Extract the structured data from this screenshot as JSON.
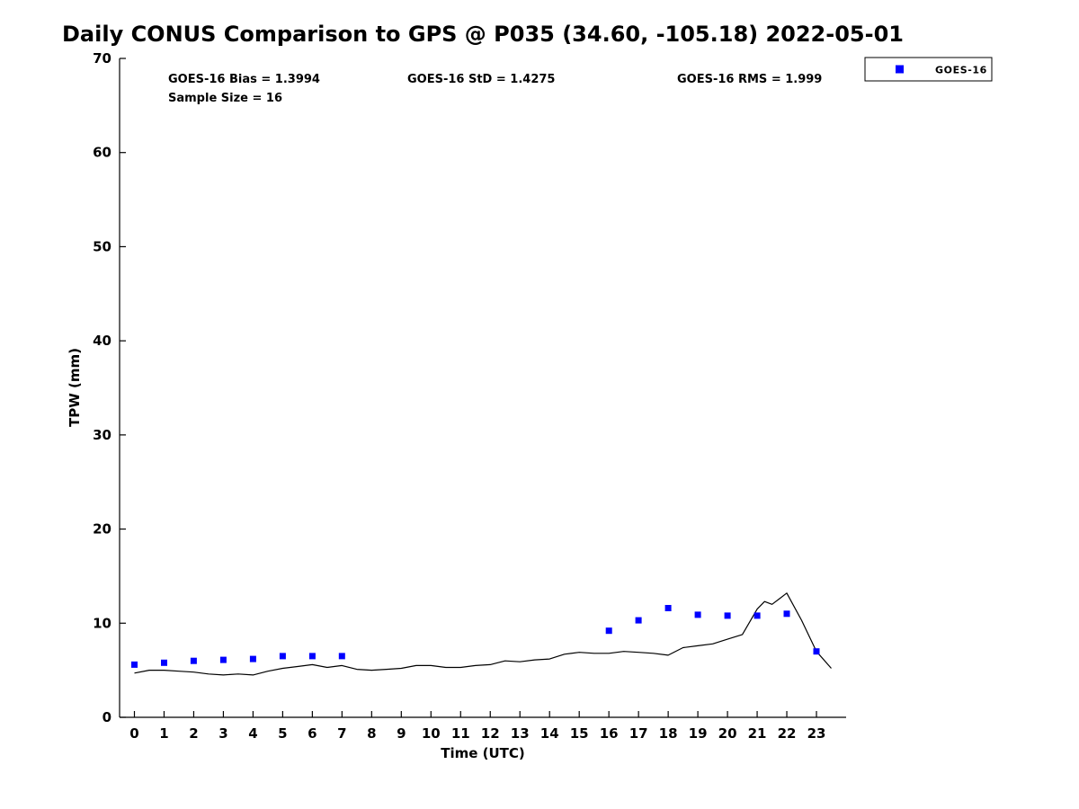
{
  "title": "Daily CONUS Comparison to GPS @ P035 (34.60, -105.18) 2022-05-01",
  "annotations": {
    "bias": "GOES-16 Bias = 1.3994",
    "std": "GOES-16 StD = 1.4275",
    "rms": "GOES-16 RMS = 1.999",
    "sample_size": "Sample Size = 16"
  },
  "legend": {
    "position": "top-right-outside",
    "entries": [
      {
        "label": "GOES-16",
        "marker": "square",
        "color": "#0000ff"
      }
    ]
  },
  "colors": {
    "gps_line": "#000000",
    "goes16_marker": "#0000ff",
    "axis": "#000000",
    "background": "#ffffff"
  },
  "chart_data": {
    "type": "line",
    "title": "Daily CONUS Comparison to GPS @ P035 (34.60, -105.18) 2022-05-01",
    "xlabel": "Time (UTC)",
    "ylabel": "TPW (mm)",
    "xlim": [
      -0.5,
      24
    ],
    "ylim": [
      0,
      70
    ],
    "xticks": [
      0,
      1,
      2,
      3,
      4,
      5,
      6,
      7,
      8,
      9,
      10,
      11,
      12,
      13,
      14,
      15,
      16,
      17,
      18,
      19,
      20,
      21,
      22,
      23
    ],
    "yticks": [
      0,
      10,
      20,
      30,
      40,
      50,
      60,
      70
    ],
    "grid": false,
    "legend_position": "top-right-outside",
    "series": [
      {
        "name": "GPS",
        "type": "line",
        "color": "#000000",
        "x": [
          0,
          0.5,
          1,
          1.5,
          2,
          2.5,
          3,
          3.5,
          4,
          4.5,
          5,
          5.5,
          6,
          6.5,
          7,
          7.5,
          8,
          8.5,
          9,
          9.5,
          10,
          10.5,
          11,
          11.5,
          12,
          12.5,
          13,
          13.5,
          14,
          14.5,
          15,
          15.5,
          16,
          16.5,
          17,
          17.5,
          18,
          18.5,
          19,
          19.5,
          20,
          20.5,
          21,
          21.25,
          21.5,
          21.75,
          22,
          22.5,
          23,
          23.5
        ],
        "y": [
          4.7,
          5.0,
          5.0,
          4.9,
          4.8,
          4.6,
          4.5,
          4.6,
          4.5,
          4.9,
          5.2,
          5.4,
          5.6,
          5.3,
          5.5,
          5.1,
          5.0,
          5.1,
          5.2,
          5.5,
          5.5,
          5.3,
          5.3,
          5.5,
          5.6,
          6.0,
          5.9,
          6.1,
          6.2,
          6.7,
          6.9,
          6.8,
          6.8,
          7.0,
          6.9,
          6.8,
          6.6,
          7.4,
          7.6,
          7.8,
          8.3,
          8.8,
          11.5,
          12.3,
          12.0,
          12.6,
          13.2,
          10.3,
          7.0,
          5.2
        ]
      },
      {
        "name": "GOES-16",
        "type": "scatter",
        "marker": "square",
        "color": "#0000ff",
        "x": [
          0,
          1,
          2,
          3,
          4,
          5,
          6,
          7,
          16,
          17,
          18,
          19,
          20,
          21,
          22,
          23
        ],
        "y": [
          5.6,
          5.8,
          6.0,
          6.1,
          6.2,
          6.5,
          6.5,
          6.5,
          9.2,
          10.3,
          11.6,
          10.9,
          10.8,
          10.8,
          11.0,
          7.0
        ]
      }
    ]
  }
}
